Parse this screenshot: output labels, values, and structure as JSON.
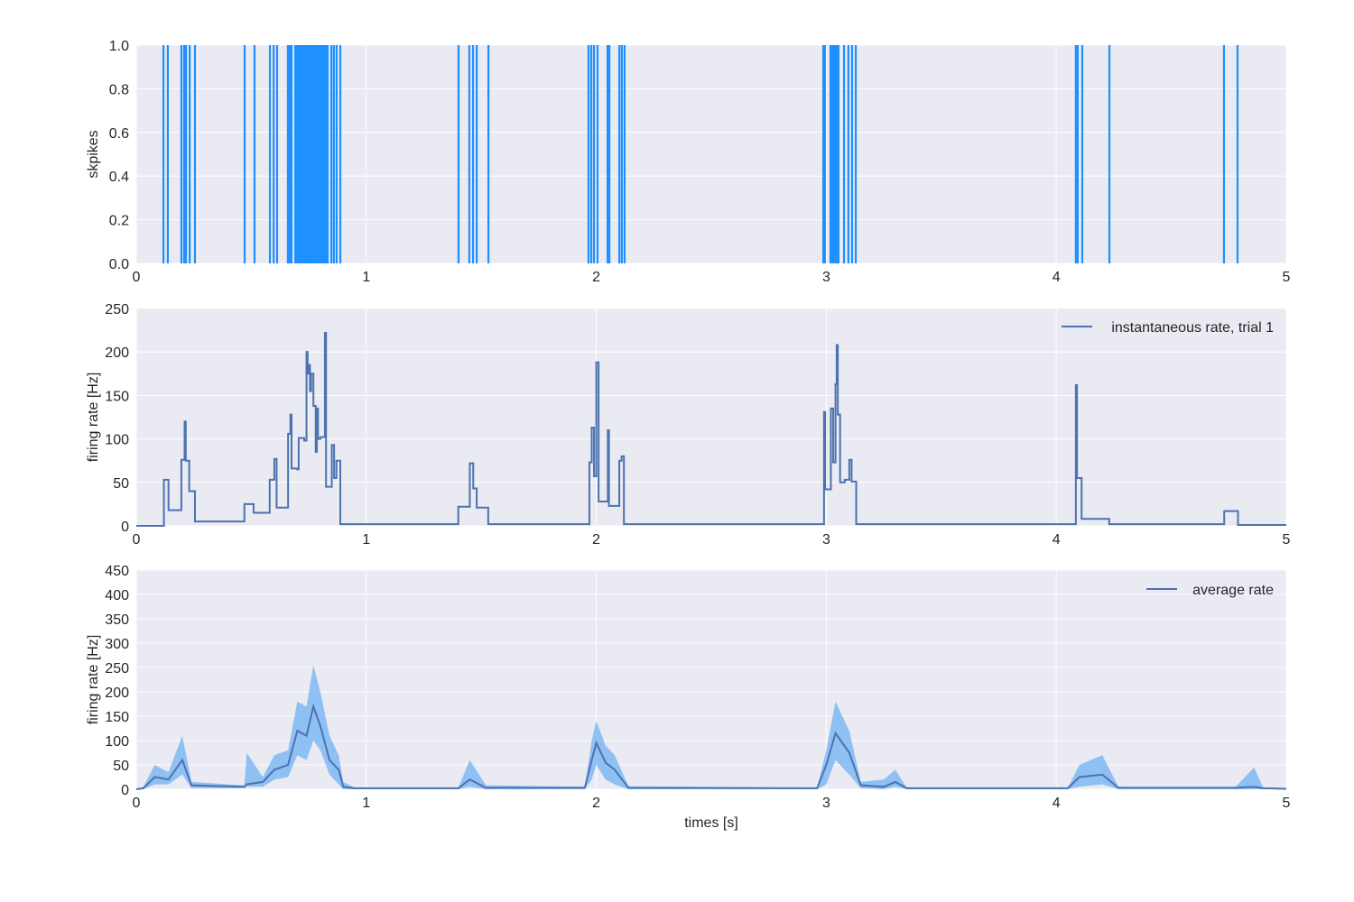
{
  "colors": {
    "background": "#EAEAF2",
    "grid": "#FFFFFF",
    "spikes": "#1E90FF",
    "line": "#4C72B0",
    "band": "#7FB8F5"
  },
  "chart_data": [
    {
      "type": "spike-raster",
      "ylabel": "skpikes",
      "xlim": [
        0,
        5
      ],
      "ylim": [
        0,
        1
      ],
      "xticks": [
        "0",
        "1",
        "2",
        "3",
        "4",
        "5"
      ],
      "yticks": [
        "0.0",
        "0.2",
        "0.4",
        "0.6",
        "0.8",
        "1.0"
      ],
      "grid": true,
      "spike_times": [
        0.118,
        0.137,
        0.196,
        0.208,
        0.216,
        0.232,
        0.255,
        0.471,
        0.514,
        0.581,
        0.597,
        0.612,
        0.659,
        0.663,
        0.667,
        0.671,
        0.675,
        0.691,
        0.699,
        0.706,
        0.712,
        0.718,
        0.726,
        0.734,
        0.738,
        0.742,
        0.746,
        0.75,
        0.754,
        0.757,
        0.761,
        0.765,
        0.769,
        0.773,
        0.781,
        0.785,
        0.789,
        0.793,
        0.797,
        0.801,
        0.805,
        0.808,
        0.812,
        0.816,
        0.824,
        0.832,
        0.848,
        0.859,
        0.871,
        0.887,
        1.401,
        1.448,
        1.464,
        1.48,
        1.531,
        1.966,
        1.978,
        1.99,
        2.005,
        2.049,
        2.057,
        2.1,
        2.111,
        2.123,
        2.987,
        2.994,
        3.018,
        3.026,
        3.032,
        3.038,
        3.046,
        3.053,
        3.077,
        3.096,
        3.112,
        3.128,
        4.085,
        4.093,
        4.113,
        4.231,
        4.729,
        4.788
      ]
    },
    {
      "type": "line",
      "ylabel": "firing rate [Hz]",
      "xlim": [
        0,
        5
      ],
      "ylim": [
        0,
        250
      ],
      "xticks": [
        "0",
        "1",
        "2",
        "3",
        "4",
        "5"
      ],
      "yticks": [
        "0",
        "50",
        "100",
        "150",
        "200",
        "250"
      ],
      "grid": true,
      "legend": "top-right",
      "series": [
        {
          "name": "instantaneous rate, trial 1",
          "steps": [
            [
              0,
              0
            ],
            [
              0.12,
              53
            ],
            [
              0.14,
              18
            ],
            [
              0.196,
              76
            ],
            [
              0.21,
              120
            ],
            [
              0.215,
              75
            ],
            [
              0.23,
              40
            ],
            [
              0.255,
              5
            ],
            [
              0.47,
              25
            ],
            [
              0.51,
              15
            ],
            [
              0.58,
              53
            ],
            [
              0.6,
              77
            ],
            [
              0.61,
              21
            ],
            [
              0.66,
              106
            ],
            [
              0.67,
              128
            ],
            [
              0.675,
              66
            ],
            [
              0.7,
              65
            ],
            [
              0.706,
              101
            ],
            [
              0.73,
              98
            ],
            [
              0.74,
              200
            ],
            [
              0.745,
              175
            ],
            [
              0.75,
              185
            ],
            [
              0.755,
              155
            ],
            [
              0.76,
              175
            ],
            [
              0.77,
              138
            ],
            [
              0.78,
              85
            ],
            [
              0.785,
              135
            ],
            [
              0.79,
              100
            ],
            [
              0.8,
              102
            ],
            [
              0.82,
              222
            ],
            [
              0.825,
              45
            ],
            [
              0.85,
              93
            ],
            [
              0.86,
              55
            ],
            [
              0.87,
              75
            ],
            [
              0.887,
              2
            ],
            [
              1.4,
              22
            ],
            [
              1.45,
              72
            ],
            [
              1.465,
              43
            ],
            [
              1.48,
              21
            ],
            [
              1.53,
              2
            ],
            [
              1.97,
              73
            ],
            [
              1.98,
              113
            ],
            [
              1.99,
              57
            ],
            [
              2.0,
              188
            ],
            [
              2.01,
              28
            ],
            [
              2.05,
              110
            ],
            [
              2.055,
              23
            ],
            [
              2.1,
              75
            ],
            [
              2.11,
              80
            ],
            [
              2.12,
              2
            ],
            [
              2.99,
              131
            ],
            [
              2.995,
              42
            ],
            [
              3.02,
              135
            ],
            [
              3.03,
              73
            ],
            [
              3.04,
              163
            ],
            [
              3.045,
              208
            ],
            [
              3.05,
              128
            ],
            [
              3.06,
              50
            ],
            [
              3.08,
              53
            ],
            [
              3.1,
              76
            ],
            [
              3.11,
              51
            ],
            [
              3.13,
              2
            ],
            [
              4.085,
              162
            ],
            [
              4.09,
              55
            ],
            [
              4.11,
              8
            ],
            [
              4.23,
              2
            ],
            [
              4.73,
              17
            ],
            [
              4.79,
              1
            ],
            [
              5,
              1
            ]
          ]
        }
      ]
    },
    {
      "type": "area",
      "xlabel": "times [s]",
      "ylabel": "firing rate [Hz]",
      "xlim": [
        0,
        5
      ],
      "ylim": [
        0,
        450
      ],
      "xticks": [
        "0",
        "1",
        "2",
        "3",
        "4",
        "5"
      ],
      "yticks": [
        "0",
        "50",
        "100",
        "150",
        "200",
        "250",
        "300",
        "350",
        "400",
        "450"
      ],
      "grid": true,
      "legend": "top-right",
      "series": [
        {
          "name": "average rate",
          "points_t_mean_upper_lower": [
            [
              0,
              0,
              0,
              0
            ],
            [
              0.03,
              2,
              4,
              0
            ],
            [
              0.08,
              25,
              50,
              10
            ],
            [
              0.14,
              20,
              35,
              10
            ],
            [
              0.2,
              60,
              110,
              30
            ],
            [
              0.24,
              8,
              15,
              2
            ],
            [
              0.47,
              5,
              8,
              2
            ],
            [
              0.48,
              10,
              75,
              5
            ],
            [
              0.55,
              15,
              25,
              5
            ],
            [
              0.6,
              40,
              70,
              20
            ],
            [
              0.66,
              50,
              80,
              25
            ],
            [
              0.7,
              120,
              180,
              70
            ],
            [
              0.74,
              110,
              170,
              60
            ],
            [
              0.77,
              170,
              255,
              100
            ],
            [
              0.8,
              130,
              200,
              80
            ],
            [
              0.84,
              60,
              110,
              30
            ],
            [
              0.88,
              40,
              70,
              10
            ],
            [
              0.9,
              5,
              15,
              0
            ],
            [
              0.95,
              2,
              3,
              0
            ],
            [
              1.4,
              2,
              3,
              0
            ],
            [
              1.45,
              20,
              60,
              5
            ],
            [
              1.52,
              3,
              8,
              0
            ],
            [
              1.95,
              3,
              5,
              0
            ],
            [
              1.98,
              60,
              100,
              20
            ],
            [
              2.0,
              95,
              140,
              50
            ],
            [
              2.04,
              55,
              90,
              20
            ],
            [
              2.08,
              40,
              70,
              10
            ],
            [
              2.14,
              3,
              6,
              0
            ],
            [
              2.96,
              2,
              3,
              0
            ],
            [
              3.0,
              50,
              80,
              10
            ],
            [
              3.04,
              115,
              180,
              60
            ],
            [
              3.1,
              75,
              120,
              30
            ],
            [
              3.15,
              8,
              15,
              2
            ],
            [
              3.25,
              5,
              20,
              0
            ],
            [
              3.3,
              15,
              40,
              5
            ],
            [
              3.35,
              2,
              3,
              0
            ],
            [
              4.05,
              2,
              3,
              0
            ],
            [
              4.1,
              25,
              50,
              5
            ],
            [
              4.2,
              30,
              70,
              10
            ],
            [
              4.27,
              3,
              5,
              0
            ],
            [
              4.72,
              3,
              3,
              0
            ],
            [
              4.78,
              3,
              5,
              0
            ],
            [
              4.86,
              5,
              45,
              0
            ],
            [
              4.9,
              2,
              3,
              0
            ],
            [
              5,
              1,
              2,
              0
            ]
          ]
        }
      ]
    }
  ]
}
